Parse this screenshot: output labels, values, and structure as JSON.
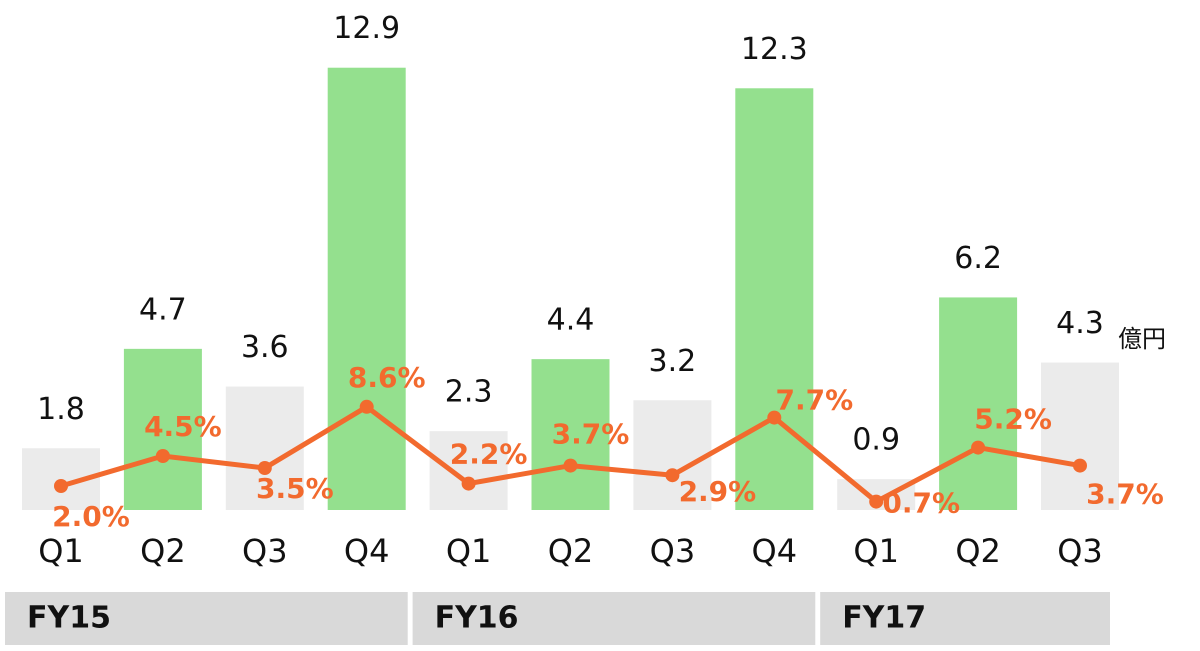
{
  "chart_data": {
    "type": "bar",
    "categories": [
      "Q1",
      "Q2",
      "Q3",
      "Q4",
      "Q1",
      "Q2",
      "Q3",
      "Q4",
      "Q1",
      "Q2",
      "Q3"
    ],
    "groups": [
      "FY15",
      "FY16",
      "FY17"
    ],
    "y_label": "億円",
    "series": [
      {
        "values": [
          1.8,
          4.7,
          3.6,
          12.9,
          2.3,
          4.4,
          3.2,
          12.3,
          0.9,
          6.2,
          4.3
        ],
        "colors": [
          "#ebebeb",
          "#94e08e",
          "#ebebeb",
          "#94e08e",
          "#ebebeb",
          "#94e08e",
          "#ebebeb",
          "#94e08e",
          "#ebebeb",
          "#94e08e",
          "#ebebeb"
        ]
      },
      {
        "type": "line",
        "axis": "y2",
        "color": "#f26a2e",
        "values": [
          2.0,
          4.5,
          3.5,
          8.6,
          2.2,
          3.7,
          2.9,
          7.7,
          0.7,
          5.2,
          3.7
        ],
        "value_labels": [
          "2.0%",
          "4.5%",
          "3.5%",
          "8.6%",
          "2.2%",
          "3.7%",
          "2.9%",
          "7.7%",
          "0.7%",
          "5.2%",
          "3.7%"
        ]
      }
    ],
    "ylim": [
      0,
      14
    ],
    "y2lim": [
      0,
      40
    ]
  }
}
